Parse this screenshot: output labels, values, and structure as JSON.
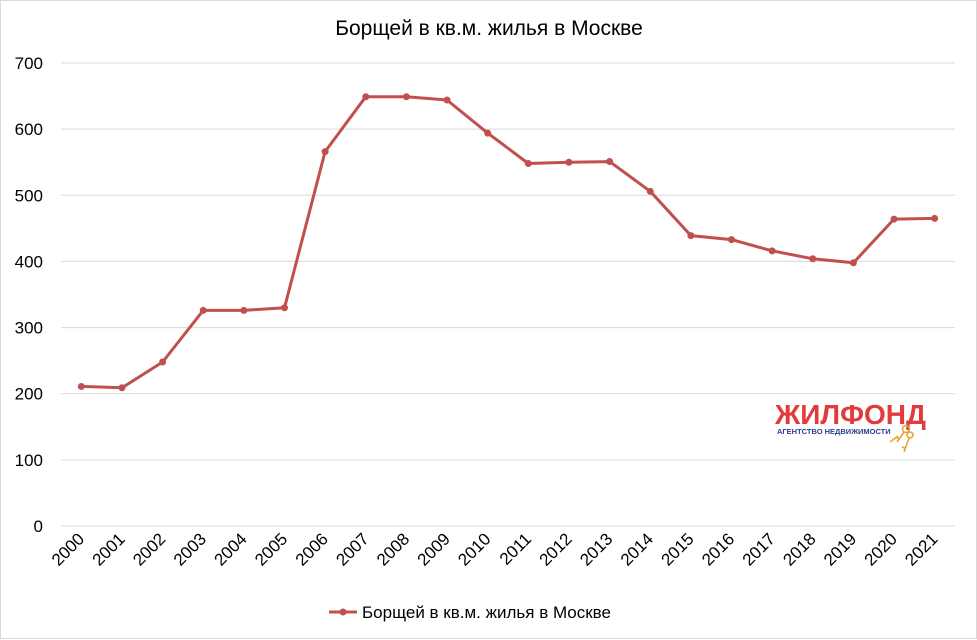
{
  "chart_data": {
    "type": "line",
    "title": "Борщей в кв.м. жилья в Москве",
    "xlabel": "",
    "ylabel": "",
    "categories": [
      "2000",
      "2001",
      "2002",
      "2003",
      "2004",
      "2005",
      "2006",
      "2007",
      "2008",
      "2009",
      "2010",
      "2011",
      "2012",
      "2013",
      "2014",
      "2015",
      "2016",
      "2017",
      "2018",
      "2019",
      "2020",
      "2021"
    ],
    "series": [
      {
        "name": "Борщей в кв.м. жилья в Москве",
        "color": "#c0504d",
        "values": [
          211,
          209,
          248,
          326,
          326,
          330,
          566,
          649,
          649,
          644,
          594,
          548,
          550,
          551,
          506,
          439,
          433,
          416,
          404,
          398,
          464,
          465
        ]
      }
    ],
    "ylim": [
      0,
      700
    ],
    "yticks": [
      0,
      100,
      200,
      300,
      400,
      500,
      600,
      700
    ],
    "grid": true,
    "legend": "bottom",
    "marker": "circle"
  },
  "logo": {
    "name": "ЖИЛФОНД",
    "tagline": "АГЕНТСТВО НЕДВИЖИМОСТИ",
    "icon": "keys-icon"
  }
}
